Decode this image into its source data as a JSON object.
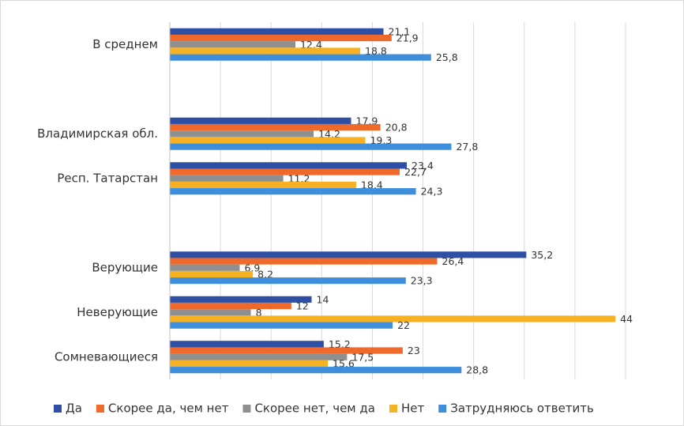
{
  "chart_data": {
    "type": "hbar",
    "categories": [
      "В среднем",
      null,
      "Владимирская обл.",
      "Респ. Татарстан",
      null,
      "Верующие",
      "Неверующие",
      "Сомневающиеся"
    ],
    "series": [
      {
        "name": "Да",
        "color": "#2e4fa3",
        "values": [
          21.1,
          null,
          17.9,
          23.4,
          null,
          35.2,
          14,
          15.2
        ],
        "value_labels": [
          "21,1",
          null,
          "17,9",
          "23,4",
          null,
          "35,2",
          "14",
          "15,2"
        ]
      },
      {
        "name": "Скорее да, чем нет",
        "color": "#ef6a2a",
        "values": [
          21.9,
          null,
          20.8,
          22.7,
          null,
          26.4,
          12,
          23
        ],
        "value_labels": [
          "21,9",
          null,
          "20,8",
          "22,7",
          null,
          "26,4",
          "12",
          "23"
        ]
      },
      {
        "name": "Скорее нет, чем да",
        "color": "#8f8f8f",
        "values": [
          12.4,
          null,
          14.2,
          11.2,
          null,
          6.9,
          8,
          17.5
        ],
        "value_labels": [
          "12,4",
          null,
          "14,2",
          "11,2",
          null,
          "6,9",
          "8",
          "17,5"
        ]
      },
      {
        "name": "Нет",
        "color": "#f6b223",
        "values": [
          18.8,
          null,
          19.3,
          18.4,
          null,
          8.2,
          44,
          15.6
        ],
        "value_labels": [
          "18,8",
          null,
          "19,3",
          "18,4",
          null,
          "8,2",
          "44",
          "15,6"
        ]
      },
      {
        "name": "Затрудняюсь ответить",
        "color": "#3e8edb",
        "values": [
          25.8,
          null,
          27.8,
          24.3,
          null,
          23.3,
          22,
          28.8
        ],
        "value_labels": [
          "25,8",
          null,
          "27,8",
          "24,3",
          null,
          "23,3",
          "22",
          "28,8"
        ]
      }
    ],
    "xlim": [
      0,
      45
    ],
    "xticks": [
      0,
      5,
      10,
      15,
      20,
      25,
      30,
      35,
      40,
      45
    ],
    "grid": true,
    "legend": "bottom"
  }
}
